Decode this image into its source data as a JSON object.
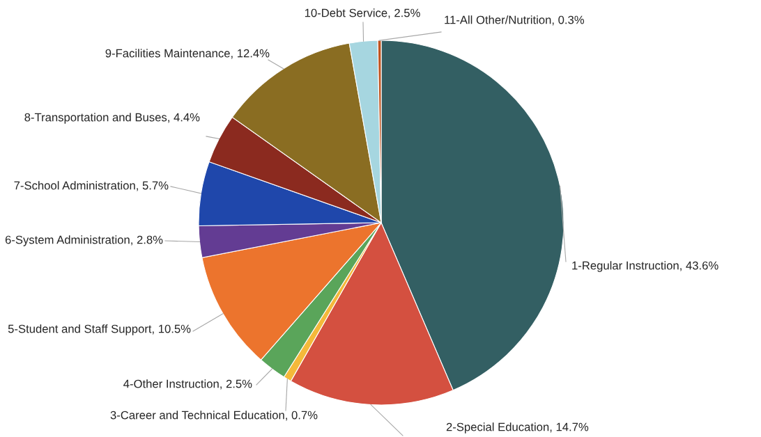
{
  "chart_data": {
    "type": "pie",
    "categories": [
      "1-Regular Instruction",
      "2-Special Education",
      "3-Career and Technical Education",
      "4-Other Instruction",
      "5-Student and Staff Support",
      "6-System Administration",
      "7-School Administration",
      "8-Transportation and Buses",
      "9-Facilities Maintenance",
      "10-Debt Service",
      "11-All Other/Nutrition"
    ],
    "values": [
      43.6,
      14.7,
      0.7,
      2.5,
      10.5,
      2.8,
      5.7,
      4.4,
      12.4,
      2.5,
      0.3
    ],
    "value_labels": [
      "43.6%",
      "14.7%",
      "0.7%",
      "2.5%",
      "10.5%",
      "2.8%",
      "5.7%",
      "4.4%",
      "12.4%",
      "2.5%",
      "0.3%"
    ],
    "colors": [
      "#335f63",
      "#d45040",
      "#f4b93a",
      "#5aa55a",
      "#ec742d",
      "#633c93",
      "#1f47ab",
      "#8b2a1f",
      "#8a6d22",
      "#a6d6e0",
      "#c0531f"
    ],
    "legend": false
  }
}
